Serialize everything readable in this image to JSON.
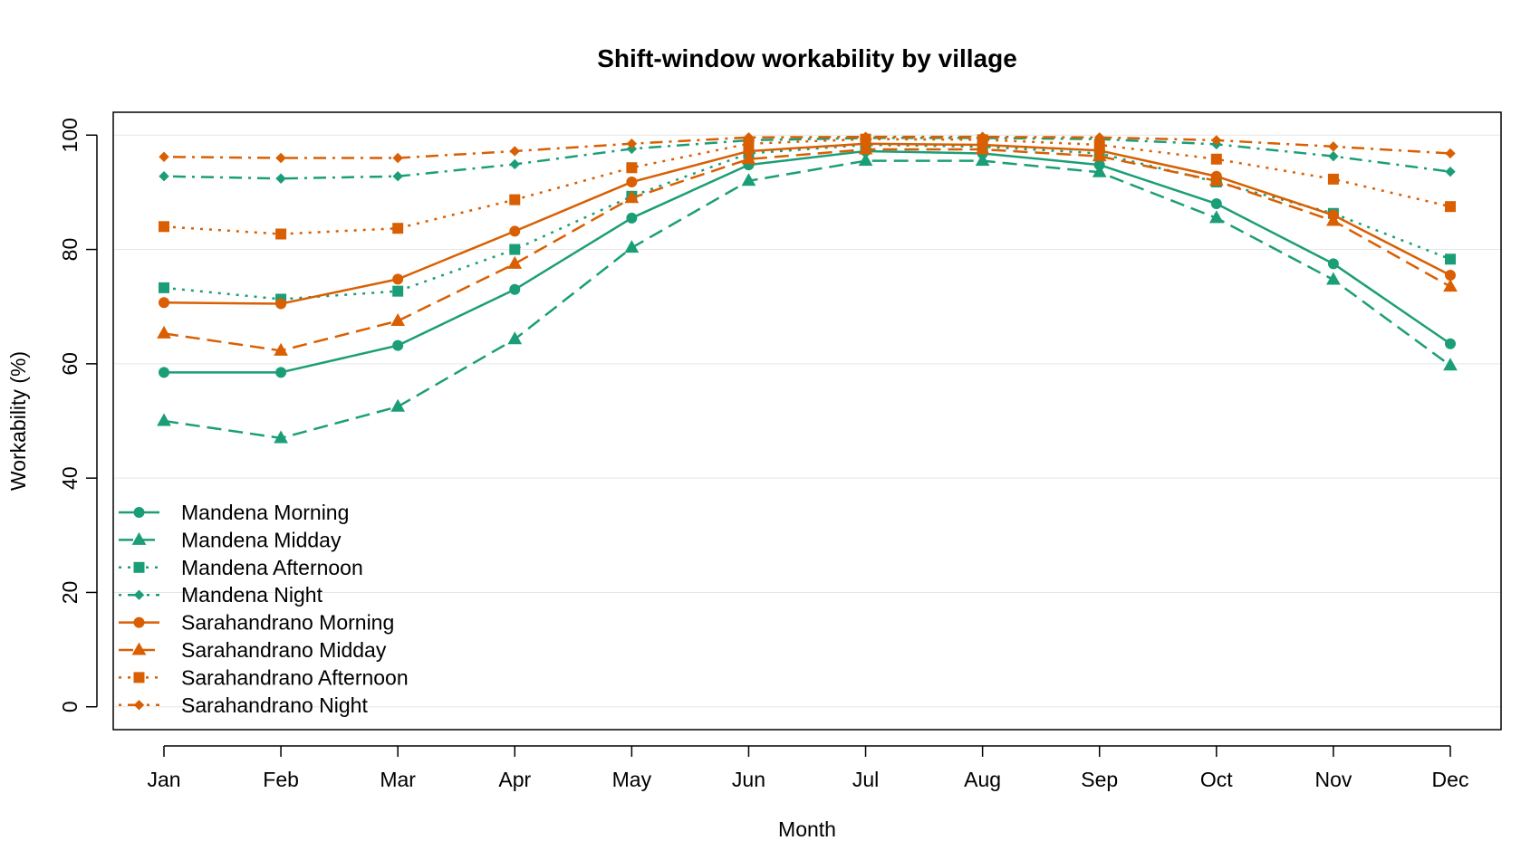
{
  "chart_data": {
    "type": "line",
    "title": "Shift-window workability by village",
    "xlabel": "Month",
    "ylabel": "Workability (%)",
    "ylim": [
      -4,
      104
    ],
    "yticks": [
      0,
      20,
      40,
      60,
      80,
      100
    ],
    "grid": "horizontal",
    "legend_position": "bottom-left",
    "categories": [
      "Jan",
      "Feb",
      "Mar",
      "Apr",
      "May",
      "Jun",
      "Jul",
      "Aug",
      "Sep",
      "Oct",
      "Nov",
      "Dec"
    ],
    "series": [
      {
        "name": "Mandena Morning",
        "color": "#1B9E77",
        "dash": "solid",
        "marker": "circle",
        "values": [
          58.5,
          58.5,
          63.2,
          73.0,
          85.5,
          94.8,
          97.2,
          96.8,
          94.8,
          88.0,
          77.5,
          63.5
        ]
      },
      {
        "name": "Mandena Midday",
        "color": "#1B9E77",
        "dash": "dashed",
        "marker": "triangle",
        "values": [
          50.0,
          47.0,
          52.5,
          64.3,
          80.3,
          92.0,
          95.5,
          95.5,
          93.5,
          85.5,
          74.7,
          59.7
        ]
      },
      {
        "name": "Mandena Afternoon",
        "color": "#1B9E77",
        "dash": "dotted",
        "marker": "square",
        "values": [
          73.3,
          71.3,
          72.7,
          80.0,
          89.3,
          96.8,
          98.3,
          98.0,
          96.8,
          91.8,
          86.3,
          78.3
        ]
      },
      {
        "name": "Mandena Night",
        "color": "#1B9E77",
        "dash": "dotdash",
        "marker": "diamond",
        "values": [
          92.8,
          92.4,
          92.8,
          94.9,
          97.6,
          99.1,
          99.5,
          99.5,
          99.3,
          98.4,
          96.3,
          93.6
        ]
      },
      {
        "name": "Sarahandrano Morning",
        "color": "#D95F02",
        "dash": "solid",
        "marker": "circle",
        "values": [
          70.7,
          70.5,
          74.8,
          83.2,
          91.8,
          97.2,
          98.5,
          98.3,
          97.3,
          92.8,
          86.0,
          75.5
        ]
      },
      {
        "name": "Sarahandrano Midday",
        "color": "#D95F02",
        "dash": "dashed",
        "marker": "triangle",
        "values": [
          65.3,
          62.3,
          67.5,
          77.5,
          89.0,
          95.8,
          97.5,
          97.5,
          96.3,
          92.0,
          85.0,
          73.5
        ]
      },
      {
        "name": "Sarahandrano Afternoon",
        "color": "#D95F02",
        "dash": "dotted",
        "marker": "square",
        "values": [
          84.0,
          82.7,
          83.7,
          88.7,
          94.3,
          98.5,
          99.3,
          99.2,
          98.3,
          95.8,
          92.3,
          87.5
        ]
      },
      {
        "name": "Sarahandrano Night",
        "color": "#D95F02",
        "dash": "dotdash",
        "marker": "diamond",
        "values": [
          96.2,
          96.0,
          96.0,
          97.2,
          98.5,
          99.6,
          99.7,
          99.7,
          99.6,
          99.1,
          98.0,
          96.8
        ]
      }
    ]
  }
}
